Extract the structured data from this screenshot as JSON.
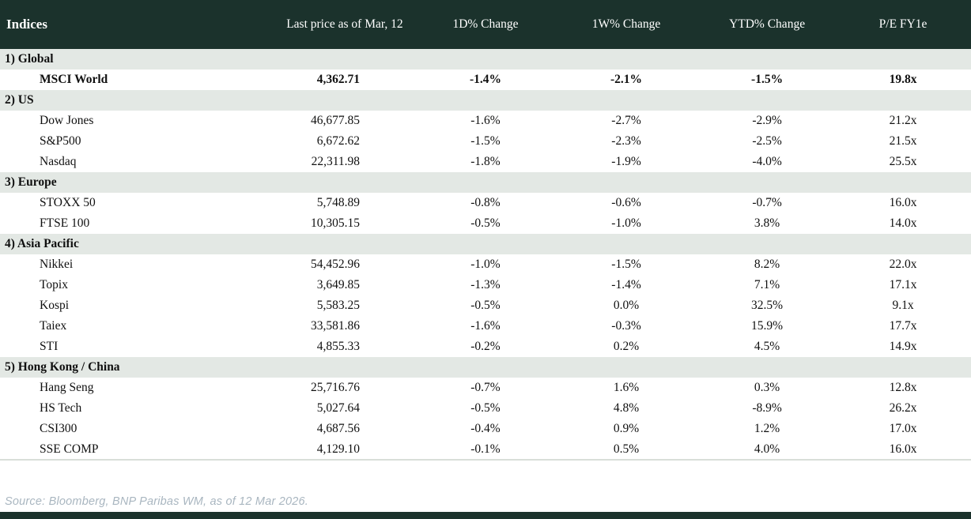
{
  "header": {
    "columns": [
      "Indices",
      "Last price as of Mar, 12",
      "1D% Change",
      "1W% Change",
      "YTD% Change",
      "P/E FY1e"
    ]
  },
  "sections": [
    {
      "label": "1) Global",
      "rows": [
        {
          "name": "MSCI World",
          "bold": true,
          "last_price": "4,362.71",
          "changes": [
            {
              "v": "-1.4%",
              "c": "neg"
            },
            {
              "v": "-2.1%",
              "c": "neg"
            },
            {
              "v": "-1.5%",
              "c": "neg"
            }
          ],
          "pe": "19.8x"
        }
      ]
    },
    {
      "label": "2) US",
      "rows": [
        {
          "name": "Dow Jones",
          "bold": false,
          "last_price": "46,677.85",
          "changes": [
            {
              "v": "-1.6%",
              "c": "neg"
            },
            {
              "v": "-2.7%",
              "c": "neg"
            },
            {
              "v": "-2.9%",
              "c": "neg"
            }
          ],
          "pe": "21.2x"
        },
        {
          "name": "S&P500",
          "bold": false,
          "last_price": "6,672.62",
          "changes": [
            {
              "v": "-1.5%",
              "c": "neg"
            },
            {
              "v": "-2.3%",
              "c": "neg"
            },
            {
              "v": "-2.5%",
              "c": "neg"
            }
          ],
          "pe": "21.5x"
        },
        {
          "name": "Nasdaq",
          "bold": false,
          "last_price": "22,311.98",
          "changes": [
            {
              "v": "-1.8%",
              "c": "neg"
            },
            {
              "v": "-1.9%",
              "c": "neg"
            },
            {
              "v": "-4.0%",
              "c": "neg"
            }
          ],
          "pe": "25.5x"
        }
      ]
    },
    {
      "label": "3) Europe",
      "rows": [
        {
          "name": "STOXX 50",
          "bold": false,
          "last_price": "5,748.89",
          "changes": [
            {
              "v": "-0.8%",
              "c": "neg"
            },
            {
              "v": "-0.6%",
              "c": "neg"
            },
            {
              "v": "-0.7%",
              "c": "neg"
            }
          ],
          "pe": "16.0x"
        },
        {
          "name": "FTSE 100",
          "bold": false,
          "last_price": "10,305.15",
          "changes": [
            {
              "v": "-0.5%",
              "c": "neg"
            },
            {
              "v": "-1.0%",
              "c": "neg"
            },
            {
              "v": "3.8%",
              "c": "pos"
            }
          ],
          "pe": "14.0x"
        }
      ]
    },
    {
      "label": "4) Asia Pacific",
      "rows": [
        {
          "name": "Nikkei",
          "bold": false,
          "last_price": "54,452.96",
          "changes": [
            {
              "v": "-1.0%",
              "c": "neg"
            },
            {
              "v": "-1.5%",
              "c": "neg"
            },
            {
              "v": "8.2%",
              "c": "pos"
            }
          ],
          "pe": "22.0x"
        },
        {
          "name": "Topix",
          "bold": false,
          "last_price": "3,649.85",
          "changes": [
            {
              "v": "-1.3%",
              "c": "neg"
            },
            {
              "v": "-1.4%",
              "c": "neg"
            },
            {
              "v": "7.1%",
              "c": "pos"
            }
          ],
          "pe": "17.1x"
        },
        {
          "name": "Kospi",
          "bold": false,
          "last_price": "5,583.25",
          "changes": [
            {
              "v": "-0.5%",
              "c": "neg"
            },
            {
              "v": "0.0%",
              "c": "neg"
            },
            {
              "v": "32.5%",
              "c": "pos"
            }
          ],
          "pe": "9.1x"
        },
        {
          "name": "Taiex",
          "bold": false,
          "last_price": "33,581.86",
          "changes": [
            {
              "v": "-1.6%",
              "c": "neg"
            },
            {
              "v": "-0.3%",
              "c": "neg"
            },
            {
              "v": "15.9%",
              "c": "pos"
            }
          ],
          "pe": "17.7x"
        },
        {
          "name": "STI",
          "bold": false,
          "last_price": "4,855.33",
          "changes": [
            {
              "v": "-0.2%",
              "c": "neg"
            },
            {
              "v": "0.2%",
              "c": "pos"
            },
            {
              "v": "4.5%",
              "c": "pos"
            }
          ],
          "pe": "14.9x"
        }
      ]
    },
    {
      "label": "5) Hong Kong / China",
      "rows": [
        {
          "name": "Hang Seng",
          "bold": false,
          "last_price": "25,716.76",
          "changes": [
            {
              "v": "-0.7%",
              "c": "neg"
            },
            {
              "v": "1.6%",
              "c": "pos"
            },
            {
              "v": "0.3%",
              "c": "pos"
            }
          ],
          "pe": "12.8x"
        },
        {
          "name": "HS Tech",
          "bold": false,
          "last_price": "5,027.64",
          "changes": [
            {
              "v": "-0.5%",
              "c": "neg"
            },
            {
              "v": "4.8%",
              "c": "pos"
            },
            {
              "v": "-8.9%",
              "c": "neg"
            }
          ],
          "pe": "26.2x"
        },
        {
          "name": "CSI300",
          "bold": false,
          "last_price": "4,687.56",
          "changes": [
            {
              "v": "-0.4%",
              "c": "neg"
            },
            {
              "v": "0.9%",
              "c": "pos"
            },
            {
              "v": "1.2%",
              "c": "pos"
            }
          ],
          "pe": "17.0x"
        },
        {
          "name": "SSE COMP",
          "bold": false,
          "last_price": "4,129.10",
          "changes": [
            {
              "v": "-0.1%",
              "c": "neg"
            },
            {
              "v": "0.5%",
              "c": "pos"
            },
            {
              "v": "4.0%",
              "c": "pos"
            }
          ],
          "pe": "16.0x"
        }
      ]
    }
  ],
  "footer": {
    "source": "Source: Bloomberg, BNP Paribas WM, as of 12 Mar 2026."
  },
  "colors": {
    "header_bg": "#1b322c",
    "section_bg": "#e3e8e4",
    "negative": "#c00000",
    "positive": "#169a3e",
    "source_text": "#a9b6c0"
  }
}
